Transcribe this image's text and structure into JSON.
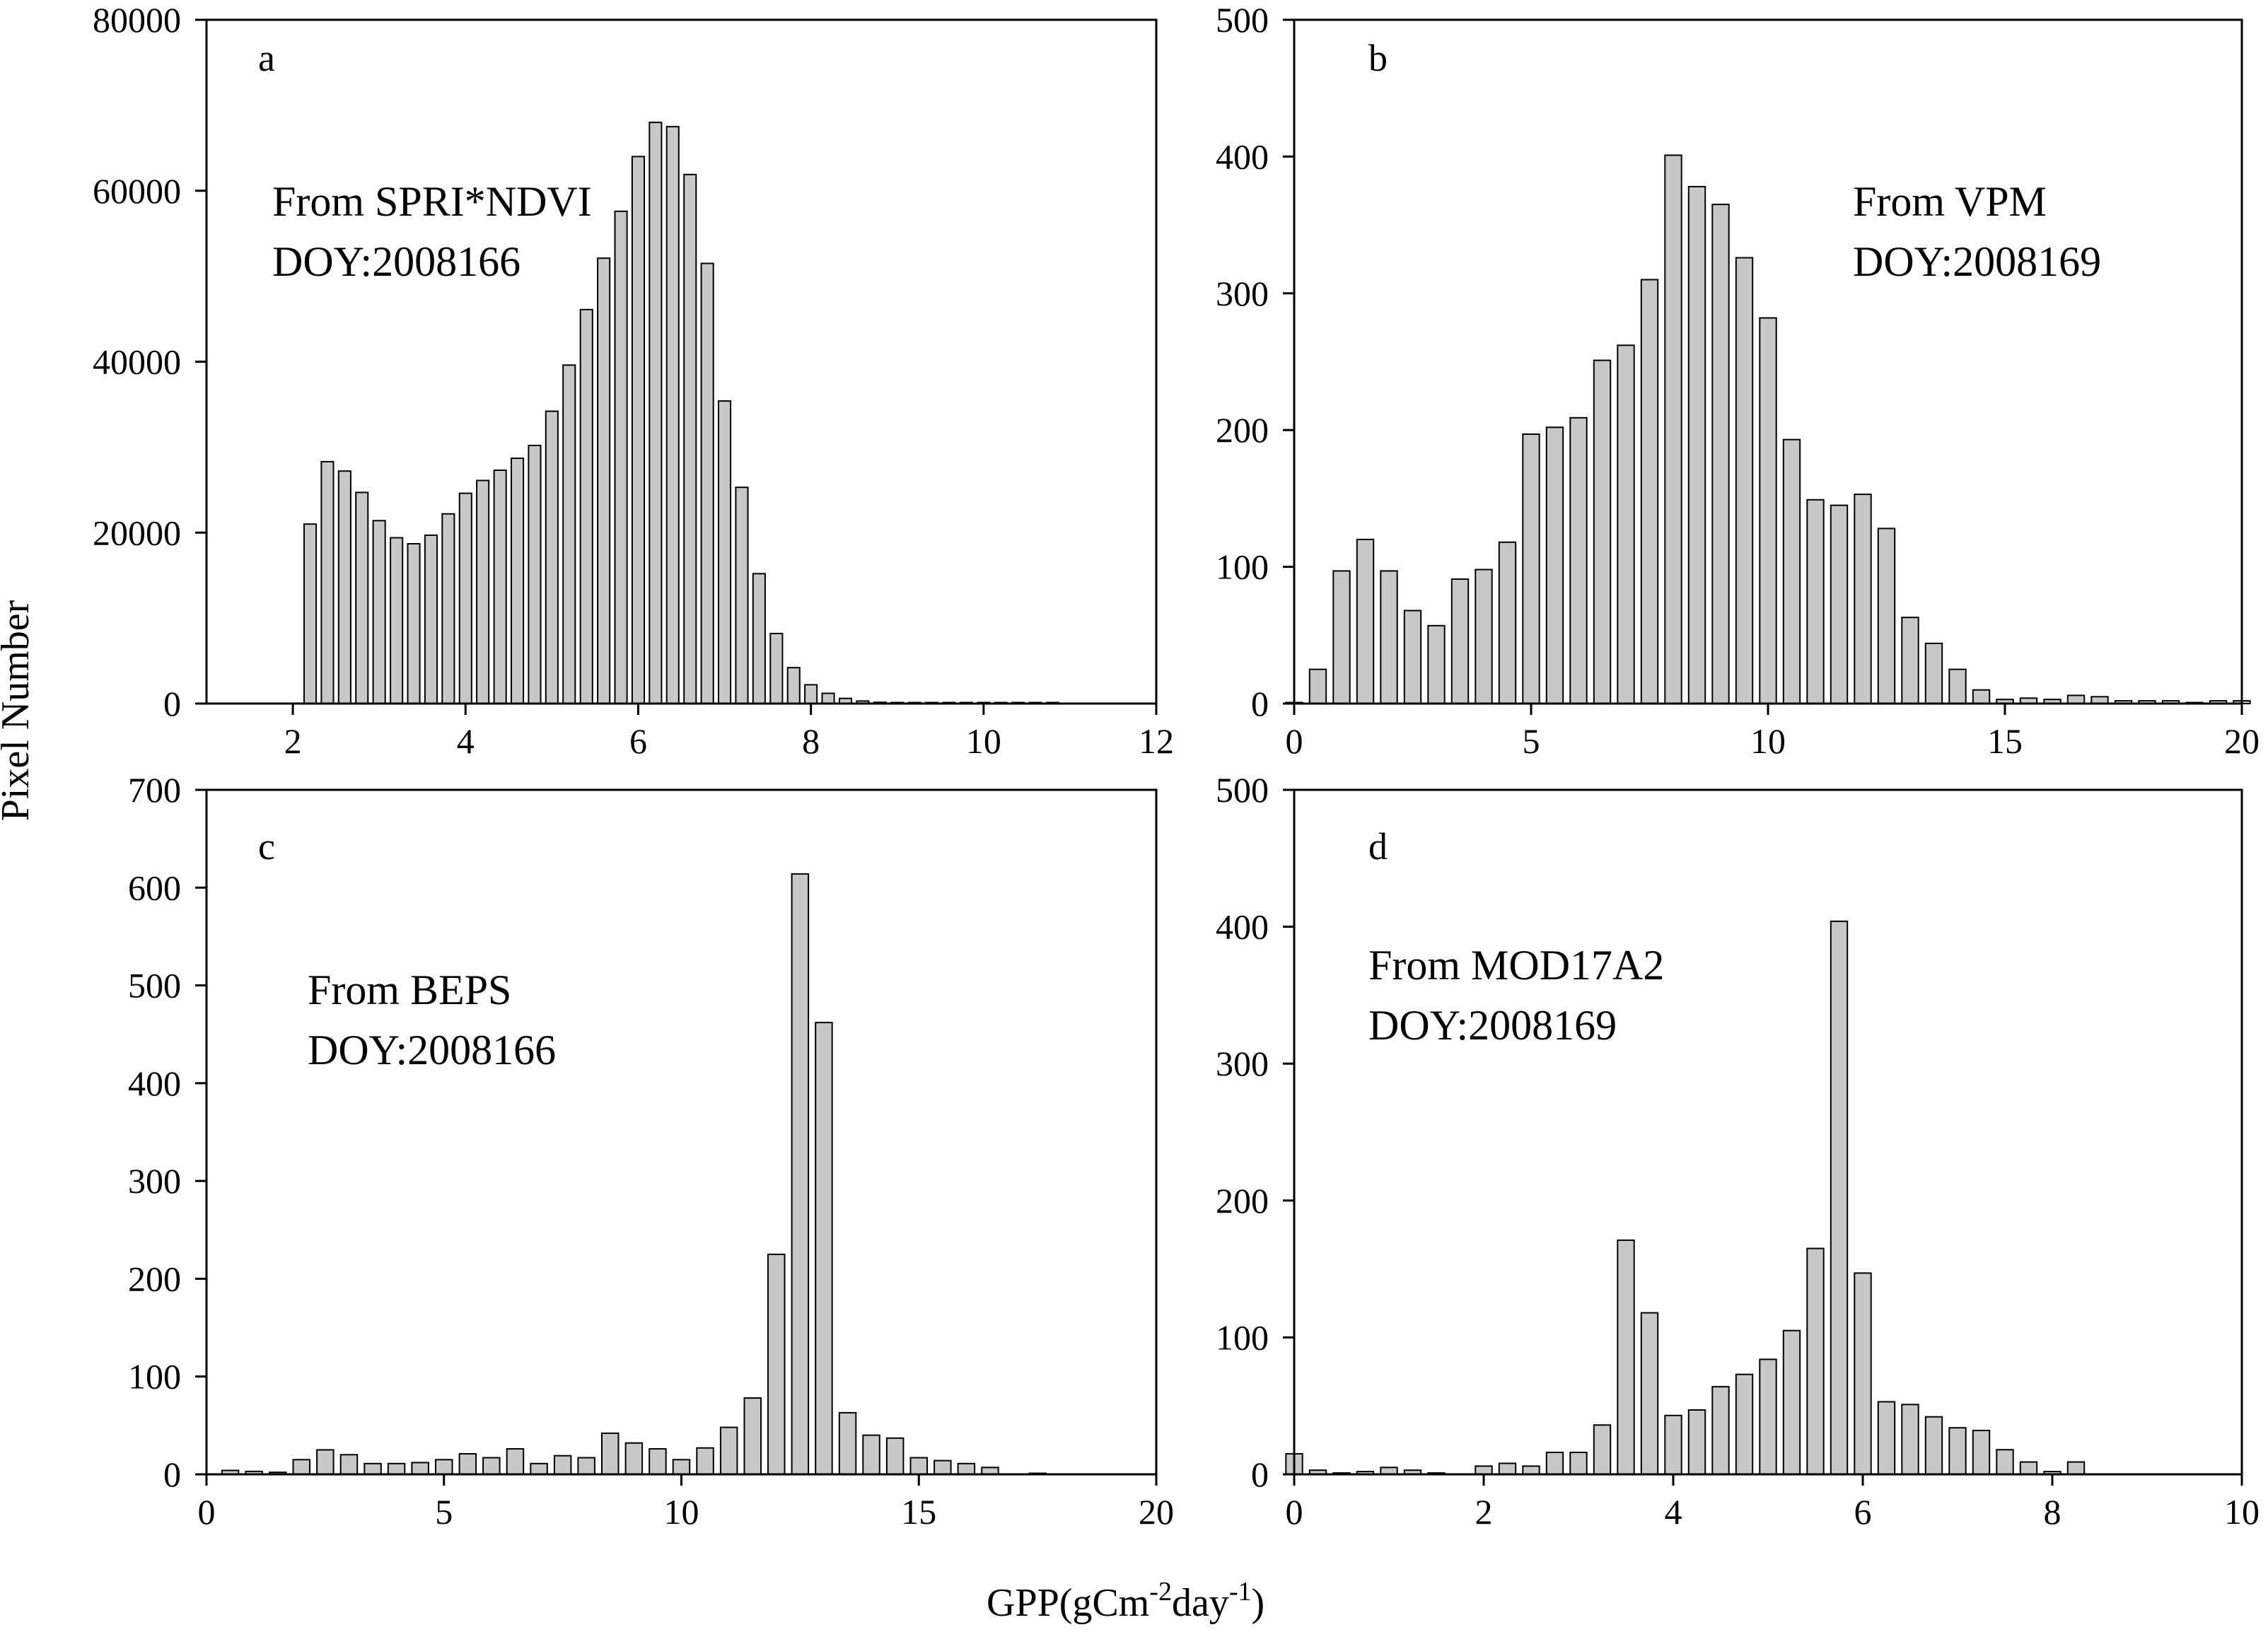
{
  "figure": {
    "ylabel": "Pixel Number",
    "xlabel_main": "GPP(gCm",
    "xlabel_sup1": "-2",
    "xlabel_mid": "day",
    "xlabel_sup2": "-1",
    "xlabel_end": ")"
  },
  "chart_data": [
    {
      "type": "bar",
      "panel": "a",
      "annotation": [
        "From SPRI*NDVI",
        "DOY:2008166"
      ],
      "xlim": [
        1,
        12
      ],
      "xticks": [
        2,
        4,
        6,
        8,
        10,
        12
      ],
      "ylim": [
        0,
        80000
      ],
      "yticks": [
        0,
        20000,
        40000,
        60000,
        80000
      ],
      "bin_width": 0.2,
      "x": [
        2.2,
        2.4,
        2.6,
        2.8,
        3.0,
        3.2,
        3.4,
        3.6,
        3.8,
        4.0,
        4.2,
        4.4,
        4.6,
        4.8,
        5.0,
        5.2,
        5.4,
        5.6,
        5.8,
        6.0,
        6.2,
        6.4,
        6.6,
        6.8,
        7.0,
        7.2,
        7.4,
        7.6,
        7.8,
        8.0,
        8.2,
        8.4,
        8.6,
        8.8,
        9.0,
        9.2,
        9.4,
        9.6,
        9.8,
        10.0,
        10.2,
        10.4,
        10.6,
        10.8
      ],
      "values": [
        21000,
        28300,
        27200,
        24700,
        21400,
        19400,
        18700,
        19700,
        22200,
        24600,
        26100,
        27300,
        28700,
        30200,
        34200,
        39600,
        46100,
        52100,
        57600,
        64000,
        68000,
        67500,
        61900,
        51500,
        35400,
        25300,
        15200,
        8200,
        4200,
        2200,
        1200,
        600,
        300,
        150,
        80,
        50,
        40,
        30,
        20,
        10,
        5,
        3,
        2,
        1
      ]
    },
    {
      "type": "bar",
      "panel": "b",
      "annotation": [
        "From VPM",
        "DOY:2008169"
      ],
      "xlim": [
        0,
        20
      ],
      "xticks": [
        0,
        5,
        10,
        15,
        20
      ],
      "ylim": [
        0,
        500
      ],
      "yticks": [
        0,
        100,
        200,
        300,
        400,
        500
      ],
      "bin_width": 0.5,
      "x": [
        0.0,
        0.5,
        1.0,
        1.5,
        2.0,
        2.5,
        3.0,
        3.5,
        4.0,
        4.5,
        5.0,
        5.5,
        6.0,
        6.5,
        7.0,
        7.5,
        8.0,
        8.5,
        9.0,
        9.5,
        10.0,
        10.5,
        11.0,
        11.5,
        12.0,
        12.5,
        13.0,
        13.5,
        14.0,
        14.5,
        15.0,
        15.5,
        16.0,
        16.5,
        17.0,
        17.5,
        18.0,
        18.5,
        19.0,
        19.5,
        20.0
      ],
      "values": [
        0,
        25,
        97,
        120,
        97,
        68,
        57,
        91,
        98,
        118,
        197,
        202,
        209,
        251,
        262,
        310,
        401,
        378,
        365,
        326,
        282,
        193,
        149,
        145,
        153,
        128,
        63,
        44,
        25,
        10,
        3,
        4,
        3,
        6,
        5,
        2,
        2,
        2,
        0,
        2,
        2
      ]
    },
    {
      "type": "bar",
      "panel": "c",
      "annotation": [
        "From BEPS",
        "DOY:2008166"
      ],
      "xlim": [
        0,
        20
      ],
      "xticks": [
        0,
        5,
        10,
        15,
        20
      ],
      "ylim": [
        0,
        700
      ],
      "yticks": [
        0,
        100,
        200,
        300,
        400,
        500,
        600,
        700
      ],
      "bin_width": 0.5,
      "x": [
        0.5,
        1.0,
        1.5,
        2.0,
        2.5,
        3.0,
        3.5,
        4.0,
        4.5,
        5.0,
        5.5,
        6.0,
        6.5,
        7.0,
        7.5,
        8.0,
        8.5,
        9.0,
        9.5,
        10.0,
        10.5,
        11.0,
        11.5,
        12.0,
        12.5,
        13.0,
        13.5,
        14.0,
        14.5,
        15.0,
        15.5,
        16.0,
        16.5,
        17.5
      ],
      "values": [
        4,
        3,
        2,
        15,
        25,
        20,
        11,
        11,
        12,
        15,
        21,
        17,
        26,
        11,
        19,
        17,
        42,
        32,
        26,
        15,
        27,
        48,
        78,
        225,
        614,
        462,
        63,
        40,
        37,
        17,
        14,
        11,
        7,
        1
      ]
    },
    {
      "type": "bar",
      "panel": "d",
      "annotation": [
        "From MOD17A2",
        "DOY:2008169"
      ],
      "xlim": [
        0,
        10
      ],
      "xticks": [
        0,
        2,
        4,
        6,
        8,
        10
      ],
      "ylim": [
        0,
        500
      ],
      "yticks": [
        0,
        100,
        200,
        300,
        400,
        500
      ],
      "bin_width": 0.25,
      "x": [
        0.0,
        0.25,
        0.5,
        0.75,
        1.0,
        1.25,
        1.5,
        2.0,
        2.25,
        2.5,
        2.75,
        3.0,
        3.25,
        3.5,
        3.75,
        4.0,
        4.25,
        4.5,
        4.75,
        5.0,
        5.25,
        5.5,
        5.75,
        6.0,
        6.25,
        6.5,
        6.75,
        7.0,
        7.25,
        7.5,
        7.75,
        8.0,
        8.25
      ],
      "values": [
        15,
        3,
        1,
        2,
        5,
        3,
        1,
        6,
        8,
        6,
        16,
        16,
        36,
        171,
        118,
        43,
        47,
        64,
        73,
        84,
        105,
        165,
        404,
        147,
        53,
        51,
        42,
        34,
        32,
        18,
        9,
        2,
        9
      ]
    }
  ]
}
